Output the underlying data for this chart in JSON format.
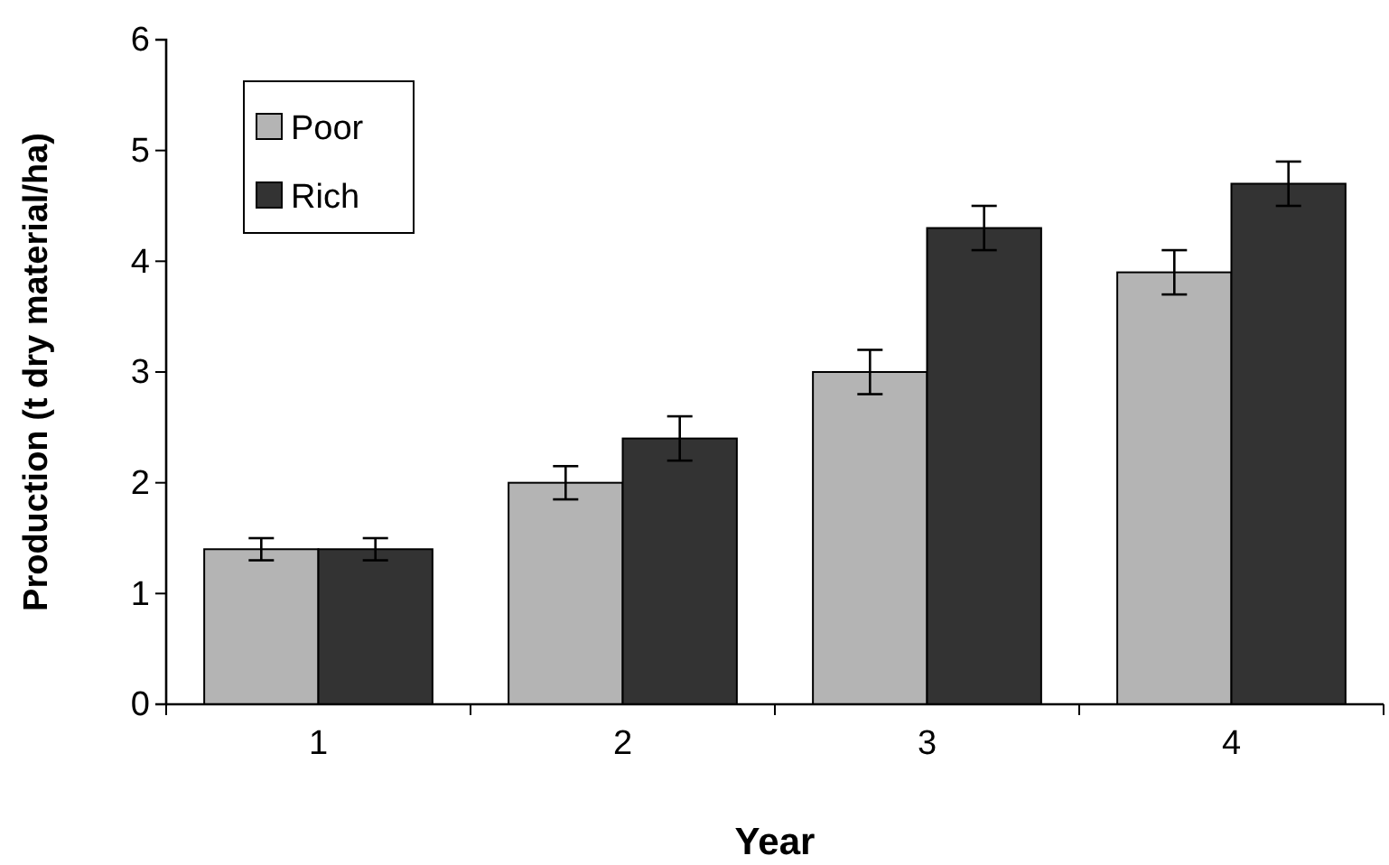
{
  "chart_data": {
    "type": "bar",
    "xlabel": "Year",
    "ylabel": "Production  (t dry material/ha)",
    "categories": [
      "1",
      "2",
      "3",
      "4"
    ],
    "series": [
      {
        "name": "Poor",
        "color": "#b4b4b4",
        "values": [
          1.4,
          2.0,
          3.0,
          3.9
        ],
        "errors": [
          0.1,
          0.15,
          0.2,
          0.2
        ]
      },
      {
        "name": "Rich",
        "color": "#333333",
        "values": [
          1.4,
          2.4,
          4.3,
          4.7
        ],
        "errors": [
          0.1,
          0.2,
          0.2,
          0.2
        ]
      }
    ],
    "ylim": [
      0,
      6
    ],
    "yticks": [
      0,
      1,
      2,
      3,
      4,
      5,
      6
    ],
    "legend": "top left"
  }
}
